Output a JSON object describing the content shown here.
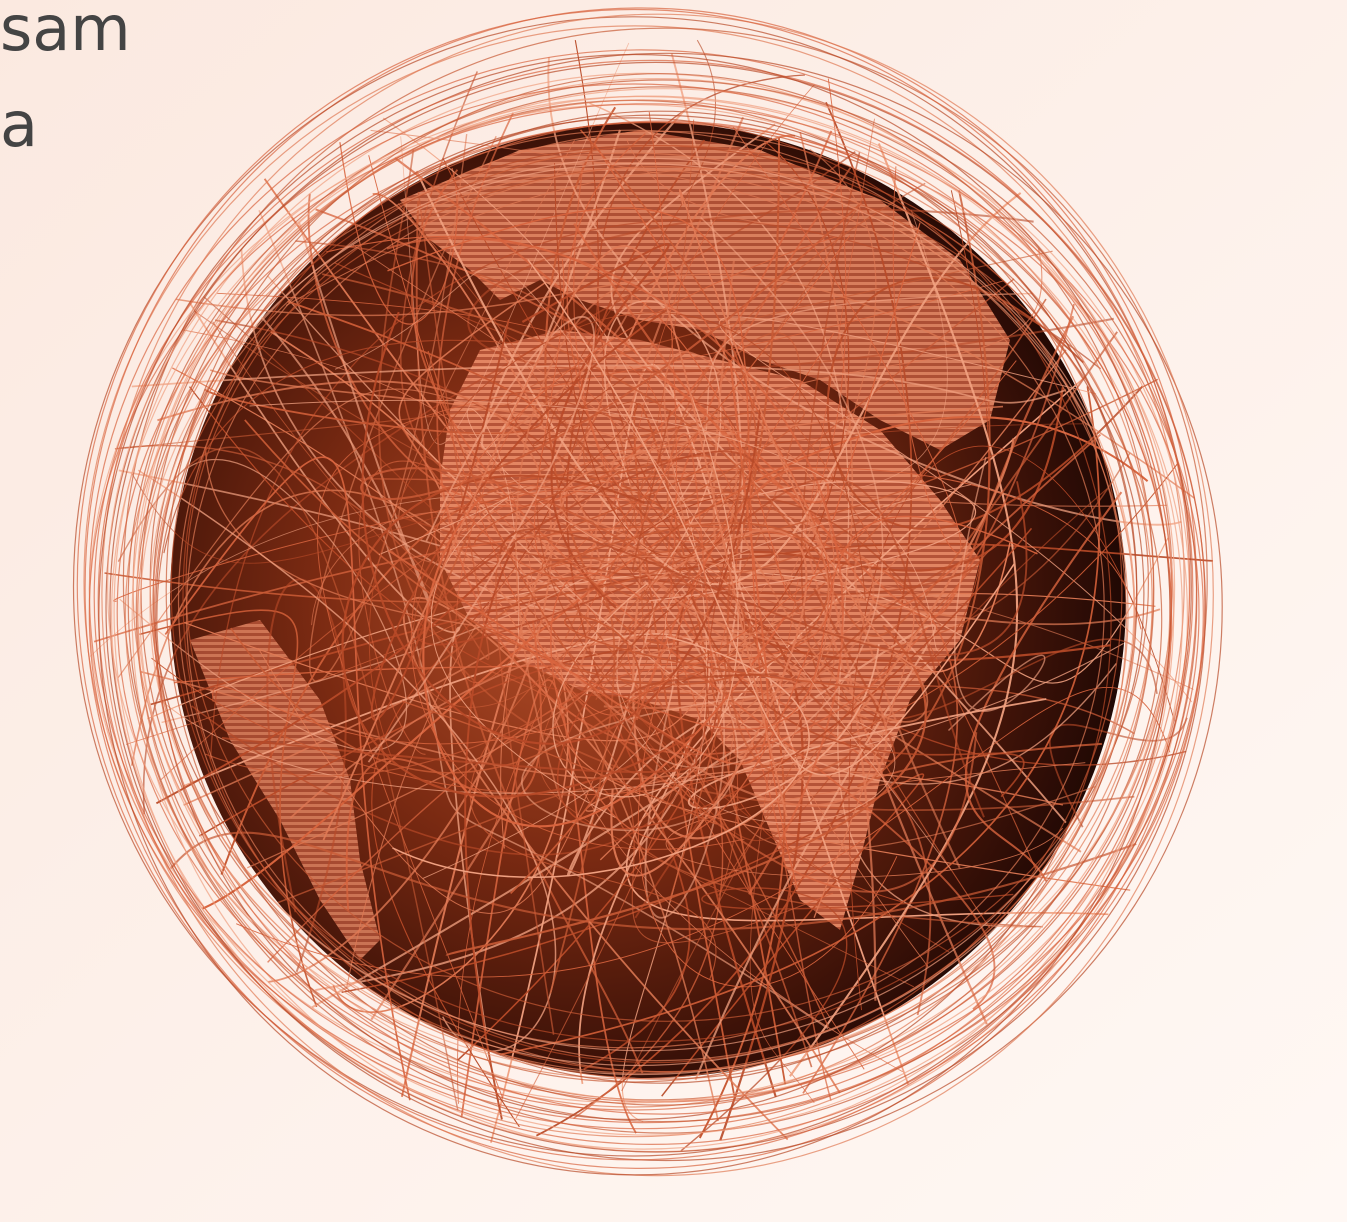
{
  "text_lines": [
    "sam",
    "a"
  ]
}
